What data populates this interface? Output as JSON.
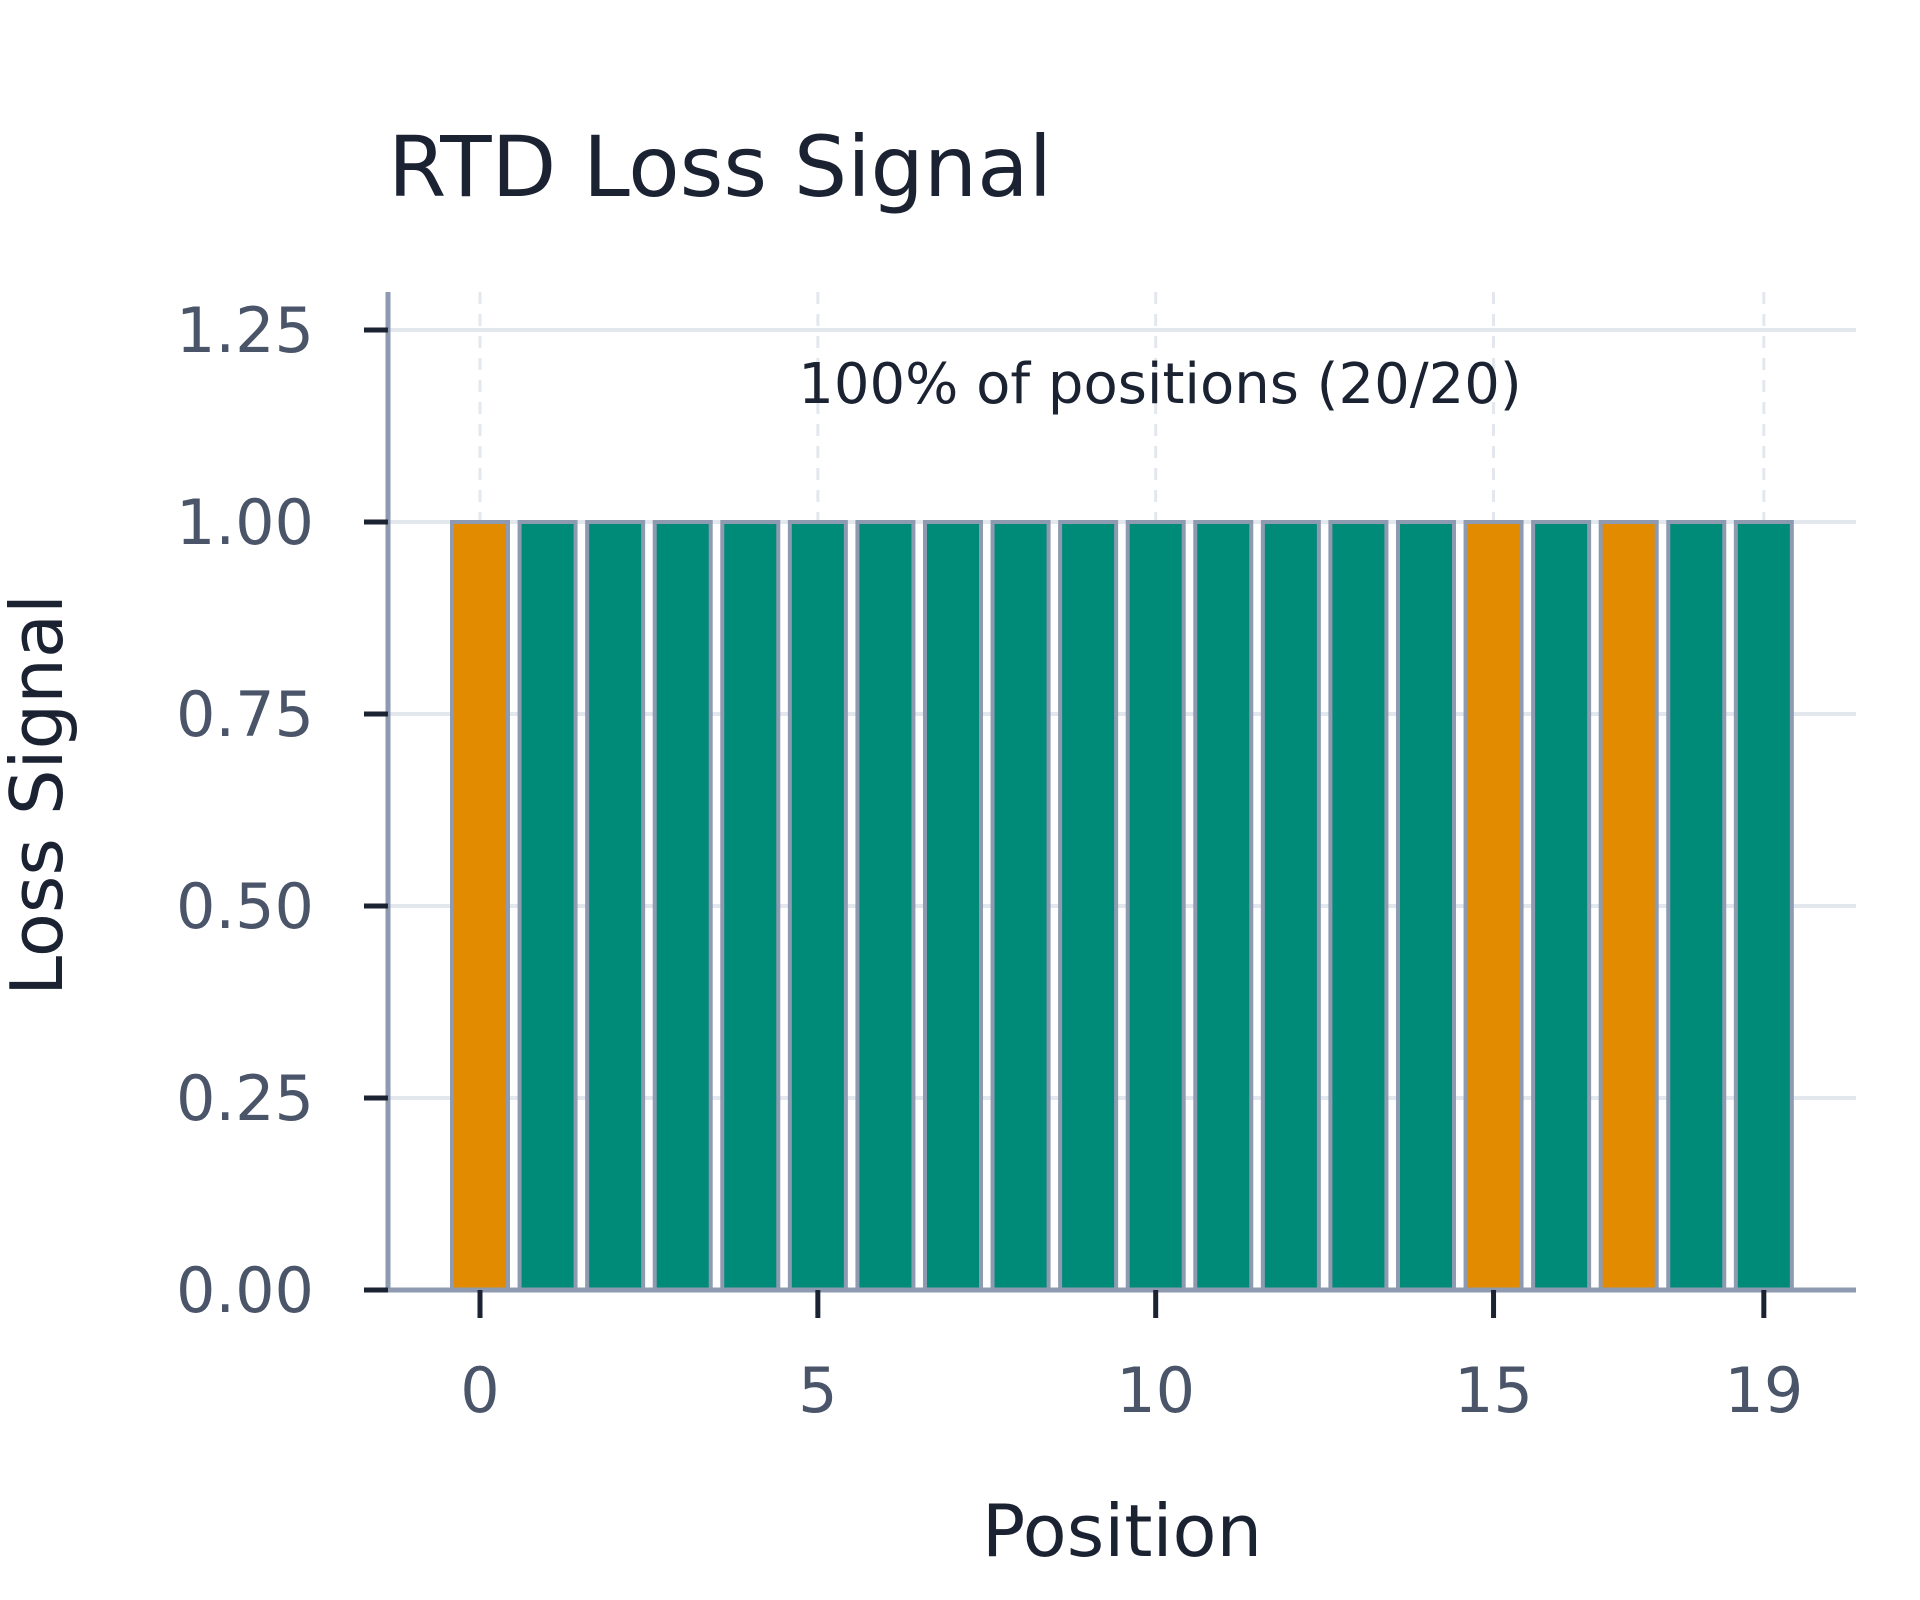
{
  "chart_data": {
    "type": "bar",
    "title": "RTD Loss Signal",
    "xlabel": "Position",
    "ylabel": "Loss Signal",
    "annotation": "100% of positions (20/20)",
    "x": [
      0,
      1,
      2,
      3,
      4,
      5,
      6,
      7,
      8,
      9,
      10,
      11,
      12,
      13,
      14,
      15,
      16,
      17,
      18,
      19
    ],
    "values": [
      1,
      1,
      1,
      1,
      1,
      1,
      1,
      1,
      1,
      1,
      1,
      1,
      1,
      1,
      1,
      1,
      1,
      1,
      1,
      1
    ],
    "bar_colors": [
      "#e28a00",
      "#008a78",
      "#008a78",
      "#008a78",
      "#008a78",
      "#008a78",
      "#008a78",
      "#008a78",
      "#008a78",
      "#008a78",
      "#008a78",
      "#008a78",
      "#008a78",
      "#008a78",
      "#008a78",
      "#e28a00",
      "#008a78",
      "#e28a00",
      "#008a78",
      "#008a78"
    ],
    "bar_edge_color": "#8e9ab0",
    "ylim": [
      0,
      1.25
    ],
    "xlim": [
      -0.5,
      19.5
    ],
    "y_ticks": [
      "0.00",
      "0.25",
      "0.50",
      "0.75",
      "1.00",
      "1.25"
    ],
    "y_tick_values": [
      0,
      0.25,
      0.5,
      0.75,
      1.0,
      1.25
    ],
    "x_ticks": [
      "0",
      "5",
      "10",
      "15",
      "19"
    ],
    "x_tick_values": [
      0,
      5,
      10,
      15,
      19
    ],
    "grid": true,
    "legend": "none",
    "colors": {
      "axis": "#8e9ab0",
      "grid": "#e3e7ee"
    }
  }
}
